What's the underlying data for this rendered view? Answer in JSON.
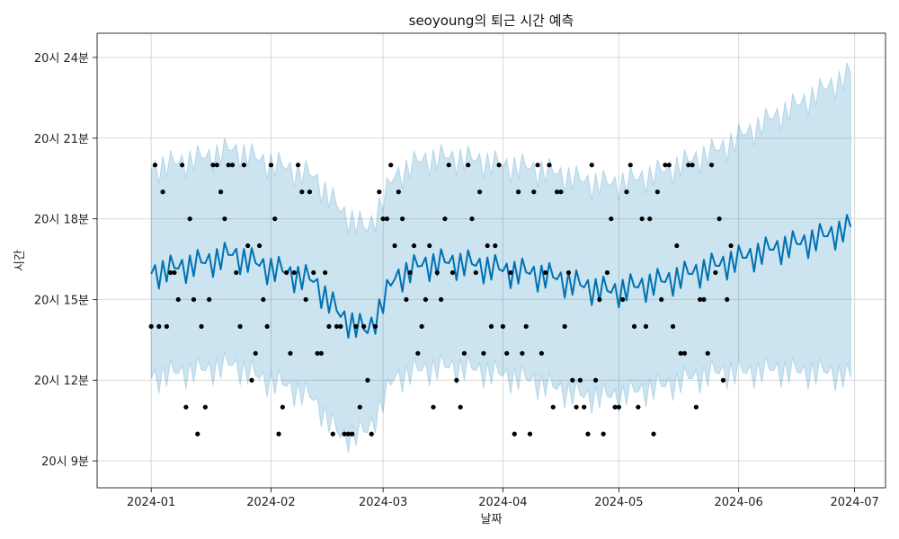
{
  "chart_data": {
    "type": "line",
    "title": "seoyoung의 퇴근 시간 예측",
    "xlabel": "날짜",
    "ylabel": "시간",
    "x_ticks": [
      "2024-01",
      "2024-02",
      "2024-03",
      "2024-04",
      "2024-05",
      "2024-06",
      "2024-07"
    ],
    "y_ticks": [
      {
        "value": 9,
        "label": "20시 9분"
      },
      {
        "value": 12,
        "label": "20시 12분"
      },
      {
        "value": 15,
        "label": "20시 15분"
      },
      {
        "value": 18,
        "label": "20시 18분"
      },
      {
        "value": 21,
        "label": "20시 21분"
      },
      {
        "value": 24,
        "label": "20시 24분"
      }
    ],
    "xlim": [
      "2023-12-18",
      "2024-07-09"
    ],
    "ylim": [
      8,
      24.9
    ],
    "grid": true,
    "colors": {
      "forecast_line": "#0072b2",
      "interval_fill": "#0072b2",
      "observed_points": "#000000",
      "grid": "#d9d9d9"
    },
    "series": [
      {
        "kind": "forecast",
        "x": [
          "2024-01-01",
          "2024-01-08",
          "2024-01-15",
          "2024-01-22",
          "2024-01-29",
          "2024-02-05",
          "2024-02-12",
          "2024-02-19",
          "2024-02-26",
          "2024-03-04",
          "2024-03-11",
          "2024-03-18",
          "2024-03-25",
          "2024-04-01",
          "2024-04-08",
          "2024-04-15",
          "2024-04-22",
          "2024-04-29",
          "2024-05-06",
          "2024-05-13",
          "2024-05-20",
          "2024-05-27",
          "2024-06-03",
          "2024-06-10",
          "2024-06-17",
          "2024-06-24",
          "2024-06-30"
        ],
        "y": [
          15.9,
          16.1,
          16.3,
          16.6,
          16.2,
          15.9,
          15.6,
          14.3,
          13.7,
          15.7,
          16.2,
          16.3,
          16.2,
          16.0,
          15.9,
          15.7,
          15.4,
          15.2,
          15.4,
          15.6,
          15.9,
          16.2,
          16.5,
          16.8,
          17.0,
          17.3,
          17.6
        ],
        "weekly_amplitude": 0.6
      },
      {
        "kind": "interval",
        "x": [
          "2024-01-01",
          "2024-01-08",
          "2024-01-15",
          "2024-01-22",
          "2024-01-29",
          "2024-02-05",
          "2024-02-12",
          "2024-02-19",
          "2024-02-26",
          "2024-03-04",
          "2024-03-11",
          "2024-03-18",
          "2024-03-25",
          "2024-04-01",
          "2024-04-08",
          "2024-04-15",
          "2024-04-22",
          "2024-04-29",
          "2024-05-06",
          "2024-05-13",
          "2024-05-20",
          "2024-05-27",
          "2024-06-03",
          "2024-06-10",
          "2024-06-17",
          "2024-06-24",
          "2024-06-30"
        ],
        "lower": [
          12.0,
          12.2,
          12.3,
          12.5,
          12.0,
          11.7,
          11.2,
          9.8,
          10.0,
          12.0,
          12.3,
          12.4,
          12.3,
          12.1,
          11.9,
          11.6,
          11.3,
          11.3,
          11.5,
          11.7,
          12.0,
          12.2,
          12.2,
          12.3,
          12.2,
          12.2,
          12.0
        ],
        "upper": [
          19.8,
          20.0,
          20.2,
          20.5,
          20.1,
          19.8,
          19.5,
          18.2,
          17.5,
          19.5,
          20.1,
          20.2,
          20.1,
          19.9,
          19.8,
          19.6,
          19.3,
          19.2,
          19.4,
          19.7,
          20.1,
          20.5,
          21.1,
          21.7,
          22.2,
          22.8,
          23.3
        ]
      },
      {
        "kind": "observed",
        "points": [
          [
            "2024-01-01",
            14
          ],
          [
            "2024-01-02",
            20
          ],
          [
            "2024-01-03",
            14
          ],
          [
            "2024-01-04",
            19
          ],
          [
            "2024-01-05",
            14
          ],
          [
            "2024-01-06",
            16
          ],
          [
            "2024-01-07",
            16
          ],
          [
            "2024-01-08",
            15
          ],
          [
            "2024-01-09",
            20
          ],
          [
            "2024-01-10",
            11
          ],
          [
            "2024-01-11",
            18
          ],
          [
            "2024-01-12",
            15
          ],
          [
            "2024-01-13",
            10
          ],
          [
            "2024-01-14",
            14
          ],
          [
            "2024-01-15",
            11
          ],
          [
            "2024-01-16",
            15
          ],
          [
            "2024-01-17",
            20
          ],
          [
            "2024-01-18",
            20
          ],
          [
            "2024-01-19",
            19
          ],
          [
            "2024-01-20",
            18
          ],
          [
            "2024-01-21",
            20
          ],
          [
            "2024-01-22",
            20
          ],
          [
            "2024-01-23",
            16
          ],
          [
            "2024-01-24",
            14
          ],
          [
            "2024-01-25",
            20
          ],
          [
            "2024-01-26",
            17
          ],
          [
            "2024-01-27",
            12
          ],
          [
            "2024-01-28",
            13
          ],
          [
            "2024-01-29",
            17
          ],
          [
            "2024-01-30",
            15
          ],
          [
            "2024-01-31",
            14
          ],
          [
            "2024-02-01",
            20
          ],
          [
            "2024-02-02",
            18
          ],
          [
            "2024-02-03",
            10
          ],
          [
            "2024-02-04",
            11
          ],
          [
            "2024-02-05",
            16
          ],
          [
            "2024-02-06",
            13
          ],
          [
            "2024-02-07",
            16
          ],
          [
            "2024-02-08",
            20
          ],
          [
            "2024-02-09",
            19
          ],
          [
            "2024-02-10",
            15
          ],
          [
            "2024-02-11",
            19
          ],
          [
            "2024-02-12",
            16
          ],
          [
            "2024-02-13",
            13
          ],
          [
            "2024-02-14",
            13
          ],
          [
            "2024-02-15",
            16
          ],
          [
            "2024-02-16",
            14
          ],
          [
            "2024-02-17",
            10
          ],
          [
            "2024-02-18",
            14
          ],
          [
            "2024-02-19",
            14
          ],
          [
            "2024-02-20",
            10
          ],
          [
            "2024-02-21",
            10
          ],
          [
            "2024-02-22",
            10
          ],
          [
            "2024-02-23",
            14
          ],
          [
            "2024-02-24",
            11
          ],
          [
            "2024-02-25",
            14
          ],
          [
            "2024-02-26",
            12
          ],
          [
            "2024-02-27",
            10
          ],
          [
            "2024-02-28",
            14
          ],
          [
            "2024-02-29",
            19
          ],
          [
            "2024-03-01",
            18
          ],
          [
            "2024-03-02",
            18
          ],
          [
            "2024-03-03",
            20
          ],
          [
            "2024-03-04",
            17
          ],
          [
            "2024-03-05",
            19
          ],
          [
            "2024-03-06",
            18
          ],
          [
            "2024-03-07",
            15
          ],
          [
            "2024-03-08",
            16
          ],
          [
            "2024-03-09",
            17
          ],
          [
            "2024-03-10",
            13
          ],
          [
            "2024-03-11",
            14
          ],
          [
            "2024-03-12",
            15
          ],
          [
            "2024-03-13",
            17
          ],
          [
            "2024-03-14",
            11
          ],
          [
            "2024-03-15",
            16
          ],
          [
            "2024-03-16",
            15
          ],
          [
            "2024-03-17",
            18
          ],
          [
            "2024-03-18",
            20
          ],
          [
            "2024-03-19",
            16
          ],
          [
            "2024-03-20",
            12
          ],
          [
            "2024-03-21",
            11
          ],
          [
            "2024-03-22",
            13
          ],
          [
            "2024-03-23",
            20
          ],
          [
            "2024-03-24",
            18
          ],
          [
            "2024-03-25",
            16
          ],
          [
            "2024-03-26",
            19
          ],
          [
            "2024-03-27",
            13
          ],
          [
            "2024-03-28",
            17
          ],
          [
            "2024-03-29",
            14
          ],
          [
            "2024-03-30",
            17
          ],
          [
            "2024-03-31",
            20
          ],
          [
            "2024-04-01",
            14
          ],
          [
            "2024-04-02",
            13
          ],
          [
            "2024-04-03",
            16
          ],
          [
            "2024-04-04",
            10
          ],
          [
            "2024-04-05",
            19
          ],
          [
            "2024-04-06",
            13
          ],
          [
            "2024-04-07",
            14
          ],
          [
            "2024-04-08",
            10
          ],
          [
            "2024-04-09",
            19
          ],
          [
            "2024-04-10",
            20
          ],
          [
            "2024-04-11",
            13
          ],
          [
            "2024-04-12",
            16
          ],
          [
            "2024-04-13",
            20
          ],
          [
            "2024-04-14",
            11
          ],
          [
            "2024-04-15",
            19
          ],
          [
            "2024-04-16",
            19
          ],
          [
            "2024-04-17",
            14
          ],
          [
            "2024-04-18",
            16
          ],
          [
            "2024-04-19",
            12
          ],
          [
            "2024-04-20",
            11
          ],
          [
            "2024-04-21",
            12
          ],
          [
            "2024-04-22",
            11
          ],
          [
            "2024-04-23",
            10
          ],
          [
            "2024-04-24",
            20
          ],
          [
            "2024-04-25",
            12
          ],
          [
            "2024-04-26",
            15
          ],
          [
            "2024-04-27",
            10
          ],
          [
            "2024-04-28",
            16
          ],
          [
            "2024-04-29",
            18
          ],
          [
            "2024-04-30",
            11
          ],
          [
            "2024-05-01",
            11
          ],
          [
            "2024-05-02",
            15
          ],
          [
            "2024-05-03",
            19
          ],
          [
            "2024-05-04",
            20
          ],
          [
            "2024-05-05",
            14
          ],
          [
            "2024-05-06",
            11
          ],
          [
            "2024-05-07",
            18
          ],
          [
            "2024-05-08",
            14
          ],
          [
            "2024-05-09",
            18
          ],
          [
            "2024-05-10",
            10
          ],
          [
            "2024-05-11",
            19
          ],
          [
            "2024-05-12",
            15
          ],
          [
            "2024-05-13",
            20
          ],
          [
            "2024-05-14",
            20
          ],
          [
            "2024-05-15",
            14
          ],
          [
            "2024-05-16",
            17
          ],
          [
            "2024-05-17",
            13
          ],
          [
            "2024-05-18",
            13
          ],
          [
            "2024-05-19",
            20
          ],
          [
            "2024-05-20",
            20
          ],
          [
            "2024-05-21",
            11
          ],
          [
            "2024-05-22",
            15
          ],
          [
            "2024-05-23",
            15
          ],
          [
            "2024-05-24",
            13
          ],
          [
            "2024-05-25",
            20
          ],
          [
            "2024-05-26",
            16
          ],
          [
            "2024-05-27",
            18
          ],
          [
            "2024-05-28",
            12
          ],
          [
            "2024-05-29",
            15
          ],
          [
            "2024-05-30",
            17
          ]
        ]
      }
    ]
  }
}
